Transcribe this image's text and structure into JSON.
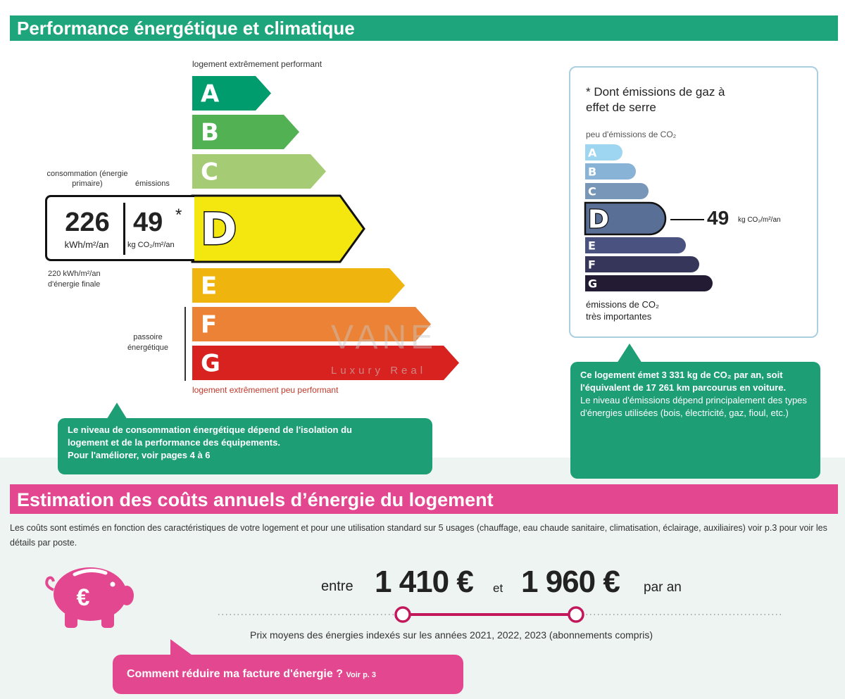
{
  "energy": {
    "title": "Performance énergétique et climatique",
    "top_label": "logement extrêmement performant",
    "bottom_label": "logement extrêmement peu performant",
    "classes": [
      {
        "letter": "A",
        "color": "#009c6d"
      },
      {
        "letter": "B",
        "color": "#52b153"
      },
      {
        "letter": "C",
        "color": "#a5cc74"
      },
      {
        "letter": "D",
        "color": "#f4e70f"
      },
      {
        "letter": "E",
        "color": "#f0b40f"
      },
      {
        "letter": "F",
        "color": "#eb8235"
      },
      {
        "letter": "G",
        "color": "#d7221f"
      }
    ],
    "current_class": "D",
    "consumption_label": "consommation (énergie primaire)",
    "emissions_label": "émissions",
    "consumption_value": "226",
    "consumption_unit": "kWh/m²/an",
    "emissions_value": "49",
    "emissions_asterisk": "*",
    "emissions_unit": "kg CO₂/m²/an",
    "final_energy_line1": "220 kWh/m²/an",
    "final_energy_line2": "d'énergie finale",
    "passoire_label": "passoire énergétique",
    "callout": [
      "Le niveau de consommation énergétique dépend de l'isolation du",
      "logement et de la performance des équipements.",
      "Pour l'améliorer, voir pages 4 à 6"
    ]
  },
  "ghg": {
    "note": "* Dont émissions de gaz à effet de serre",
    "top_label": "peu d'émissions de CO₂",
    "bottom_label_1": "émissions de CO₂",
    "bottom_label_2": "très importantes",
    "classes": [
      {
        "letter": "A",
        "color": "#9ed6f2"
      },
      {
        "letter": "B",
        "color": "#88b3d6"
      },
      {
        "letter": "C",
        "color": "#7796b8"
      },
      {
        "letter": "D",
        "color": "#5a6f96"
      },
      {
        "letter": "E",
        "color": "#4a5380"
      },
      {
        "letter": "F",
        "color": "#35365a"
      },
      {
        "letter": "G",
        "color": "#231a33"
      }
    ],
    "current_class": "D",
    "value": "49",
    "unit": "kg CO₂/m²/an",
    "callout_bold": "Ce logement émet 3 331 kg de CO₂ par an, soit l'équivalent de 17 261 km parcourus en voiture.",
    "callout_text": "Le niveau d'émissions dépend principalement des types d'énergies utilisées (bois, électricité, gaz, fioul, etc.)"
  },
  "costs": {
    "title": "Estimation des coûts annuels d’énergie du logement",
    "description": "Les coûts sont estimés en fonction des caractéristiques de votre logement et pour une utilisation standard sur 5 usages (chauffage, eau chaude sanitaire, climatisation, éclairage, auxiliaires) voir p.3 pour voir les détails par poste.",
    "between": "entre",
    "min": "1 410 €",
    "and": "et",
    "max": "1 960 €",
    "per_year": "par an",
    "prices_note": "Prix moyens des énergies indexés sur les années 2021, 2022, 2023 (abonnements compris)",
    "reduce_link": "Comment réduire ma facture d'énergie ?",
    "reduce_page": "Voir p. 3",
    "accent": "#e2478f"
  },
  "watermark": {
    "line1": "VANE",
    "line2": "Luxury Real"
  }
}
